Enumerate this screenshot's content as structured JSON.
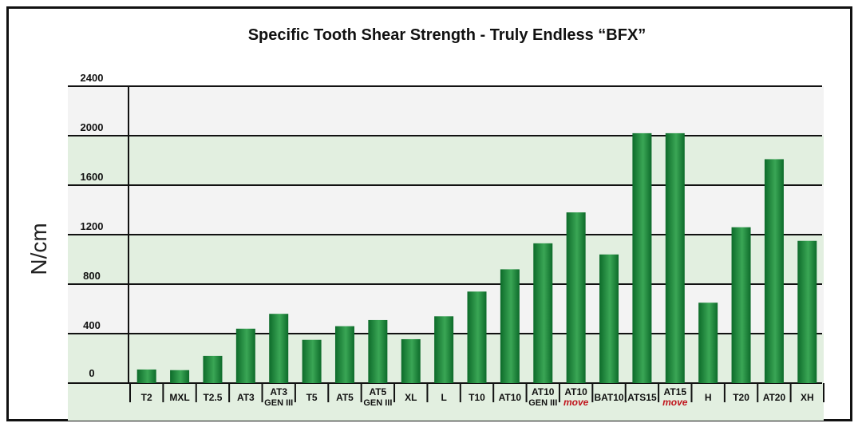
{
  "chart_data": {
    "type": "bar",
    "title": "Specific Tooth Shear Strength - Truly Endless “BFX”",
    "ylabel": "N/cm",
    "xlabel": "",
    "ylim": [
      0,
      2400
    ],
    "yticks": [
      0,
      400,
      800,
      1200,
      1600,
      2000,
      2400
    ],
    "grid": true,
    "categories": [
      {
        "label": "T2",
        "sub": ""
      },
      {
        "label": "MXL",
        "sub": ""
      },
      {
        "label": "T2.5",
        "sub": ""
      },
      {
        "label": "AT3",
        "sub": ""
      },
      {
        "label": "AT3",
        "sub": "GEN III"
      },
      {
        "label": "T5",
        "sub": ""
      },
      {
        "label": "AT5",
        "sub": ""
      },
      {
        "label": "AT5",
        "sub": "GEN III"
      },
      {
        "label": "XL",
        "sub": ""
      },
      {
        "label": "L",
        "sub": ""
      },
      {
        "label": "T10",
        "sub": ""
      },
      {
        "label": "AT10",
        "sub": ""
      },
      {
        "label": "AT10",
        "sub": "GEN III"
      },
      {
        "label": "AT10",
        "sub": "move",
        "sub_color": "#c0141c"
      },
      {
        "label": "BAT10",
        "sub": ""
      },
      {
        "label": "ATS15",
        "sub": ""
      },
      {
        "label": "AT15",
        "sub": "move",
        "sub_color": "#c0141c"
      },
      {
        "label": "H",
        "sub": ""
      },
      {
        "label": "T20",
        "sub": ""
      },
      {
        "label": "AT20",
        "sub": ""
      },
      {
        "label": "XH",
        "sub": ""
      }
    ],
    "values": [
      110,
      105,
      220,
      440,
      560,
      350,
      460,
      510,
      355,
      540,
      740,
      920,
      1130,
      1380,
      1040,
      2020,
      2020,
      650,
      1260,
      1810,
      1150
    ],
    "colors": {
      "bar_dark": "#0d6b2a",
      "bar_light": "#3aa655",
      "band_green": "#e2efe0",
      "band_gray": "#f3f3f3"
    }
  }
}
